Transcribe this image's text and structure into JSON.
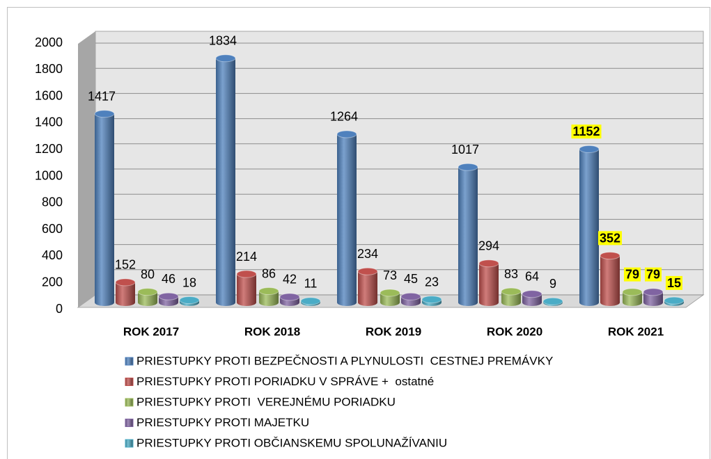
{
  "chart_data": {
    "type": "bar",
    "categories": [
      "ROK 2017",
      "ROK 2018",
      "ROK 2019",
      "ROK 2020",
      "ROK 2021"
    ],
    "series": [
      {
        "name": "PRIESTUPKY PROTI BEZPEČNOSTI A PLYNULOSTI  CESTNEJ PREMÁVKY",
        "color": "#4f81bd",
        "values": [
          1417,
          1834,
          1264,
          1017,
          1152
        ]
      },
      {
        "name": "PRIESTUPKY PROTI PORIADKU V SPRÁVE +  ostatné",
        "color": "#c0504d",
        "values": [
          152,
          214,
          234,
          294,
          352
        ]
      },
      {
        "name": "PRIESTUPKY PROTI  VEREJNÉMU PORIADKU",
        "color": "#9bbb59",
        "values": [
          80,
          86,
          73,
          83,
          79
        ]
      },
      {
        "name": "PRIESTUPKY PROTI MAJETKU",
        "color": "#8064a2",
        "values": [
          46,
          42,
          45,
          64,
          79
        ]
      },
      {
        "name": "PRIESTUPKY PROTI OBČIANSKEMU SPOLUNAŽÍVANIU",
        "color": "#4bacc6",
        "values": [
          18,
          11,
          23,
          9,
          15
        ]
      }
    ],
    "ylim": [
      0,
      2000
    ],
    "yticks": [
      0,
      200,
      400,
      600,
      800,
      1000,
      1200,
      1400,
      1600,
      1800,
      2000
    ],
    "grid": true,
    "highlight": {
      "category": 4,
      "color": "#ffff00"
    }
  }
}
